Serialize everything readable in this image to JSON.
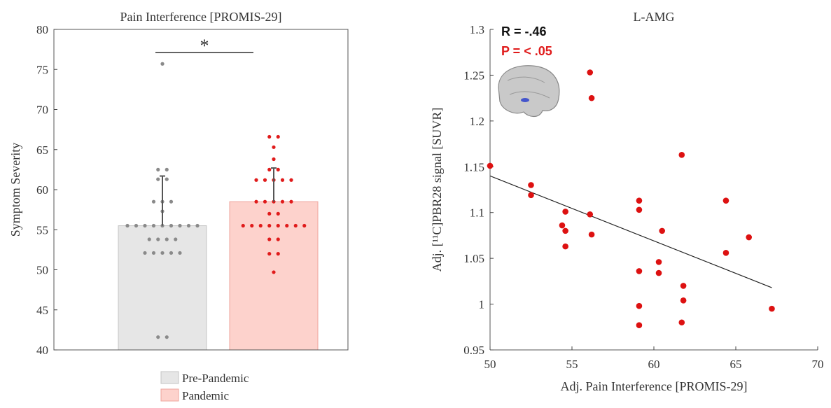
{
  "chart_data": [
    {
      "type": "bar",
      "title": "Pain Interference [PROMIS-29]",
      "ylabel": "Symptom Severity",
      "categories": [
        "Pre-Pandemic",
        "Pandemic"
      ],
      "values": [
        55.5,
        58.5
      ],
      "errors": [
        6.2,
        4.2
      ],
      "colors": [
        "#e6e6e6",
        "#fdd2cc"
      ],
      "edge_colors": [
        "#c4c4c4",
        "#eea49c"
      ],
      "point_colors": [
        "#8a8a8a",
        "#e01b1b"
      ],
      "points": [
        [
          75.7,
          62.5,
          62.5,
          61.3,
          61.3,
          58.5,
          58.5,
          58.5,
          57.3,
          55.5,
          55.5,
          55.5,
          55.5,
          55.5,
          55.5,
          55.5,
          55.5,
          55.5,
          53.8,
          53.8,
          53.8,
          53.8,
          52.1,
          52.1,
          52.1,
          52.1,
          52.1,
          41.6,
          41.6
        ],
        [
          66.6,
          66.6,
          65.3,
          63.8,
          62.5,
          62.5,
          61.2,
          61.2,
          61.2,
          61.2,
          61.2,
          58.5,
          58.5,
          58.5,
          58.5,
          58.5,
          57,
          57,
          55.5,
          55.5,
          55.5,
          55.5,
          55.5,
          55.5,
          55.5,
          55.5,
          53.8,
          53.8,
          52,
          52,
          49.7
        ]
      ],
      "significance": {
        "text": "*",
        "y": 77.1
      },
      "ylim": [
        40,
        80
      ],
      "yticks": [
        40,
        45,
        50,
        55,
        60,
        65,
        70,
        75,
        80
      ]
    },
    {
      "type": "scatter",
      "title": "L-AMG",
      "xlabel": "Adj. Pain Interference [PROMIS-29]",
      "ylabel": "Adj. [¹¹C]PBR28 signal [SUVR]",
      "color": "#dd1111",
      "annotations": [
        {
          "text": "R = -.46",
          "color": "#111111"
        },
        {
          "text": "P = < .05",
          "color": "#e01b1b"
        }
      ],
      "x": [
        56.1,
        56.2,
        61.7,
        50.0,
        52.5,
        52.5,
        54.6,
        54.4,
        54.6,
        54.6,
        56.1,
        56.2,
        59.1,
        59.1,
        60.5,
        64.4,
        64.4,
        65.8,
        59.1,
        60.3,
        60.3,
        61.8,
        61.8,
        59.1,
        61.7,
        59.1,
        67.2
      ],
      "y": [
        1.253,
        1.225,
        1.163,
        1.151,
        1.13,
        1.119,
        1.101,
        1.086,
        1.08,
        1.063,
        1.098,
        1.076,
        1.113,
        1.103,
        1.08,
        1.113,
        1.056,
        1.073,
        1.036,
        1.046,
        1.034,
        1.02,
        1.004,
        0.998,
        0.98,
        0.977,
        0.995
      ],
      "fit": {
        "x": [
          50,
          67.2
        ],
        "y": [
          1.14,
          1.018
        ]
      },
      "xlim": [
        50,
        70
      ],
      "xticks": [
        50,
        55,
        60,
        65,
        70
      ],
      "ylim": [
        0.95,
        1.3
      ],
      "yticks": [
        0.95,
        1,
        1.05,
        1.1,
        1.15,
        1.2,
        1.25,
        1.3
      ]
    }
  ]
}
